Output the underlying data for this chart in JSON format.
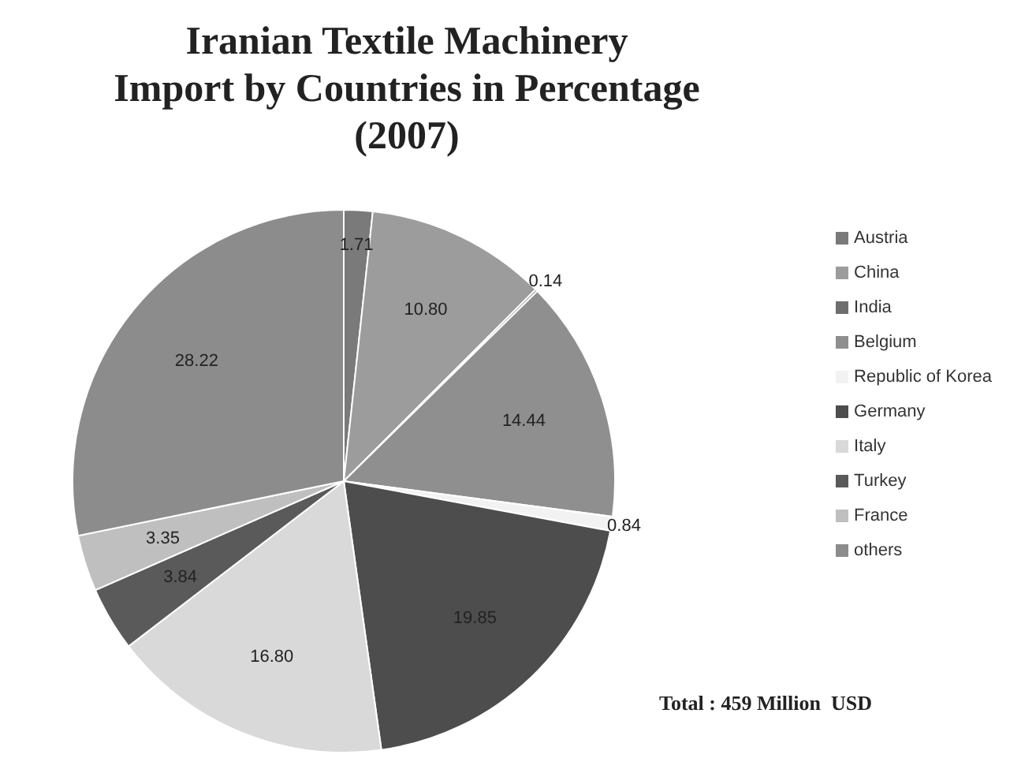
{
  "chart_data": {
    "type": "pie",
    "title": "Iranian Textile Machinery\nImport by Countries in Percentage\n(2007)",
    "categories": [
      "Austria",
      "China",
      "India",
      "Belgium",
      "Republic of Korea",
      "Germany",
      "Italy",
      "Turkey",
      "France",
      "others"
    ],
    "values": [
      1.71,
      10.8,
      0.14,
      14.44,
      0.84,
      19.85,
      16.8,
      3.84,
      3.35,
      28.22
    ],
    "value_labels": [
      "1.71",
      "10.80",
      "0.14",
      "14.44",
      "0.84",
      "19.85",
      "16.80",
      "3.84",
      "3.35",
      "28.22"
    ],
    "colors": [
      "#7a7a7a",
      "#9c9c9c",
      "#6e6e6e",
      "#8f8f8f",
      "#f2f2f2",
      "#4d4d4d",
      "#d9d9d9",
      "#5a5a5a",
      "#bfbfbf",
      "#8c8c8c"
    ],
    "legend": "right",
    "annotations": [
      "Total : 459 Million  USD"
    ]
  }
}
